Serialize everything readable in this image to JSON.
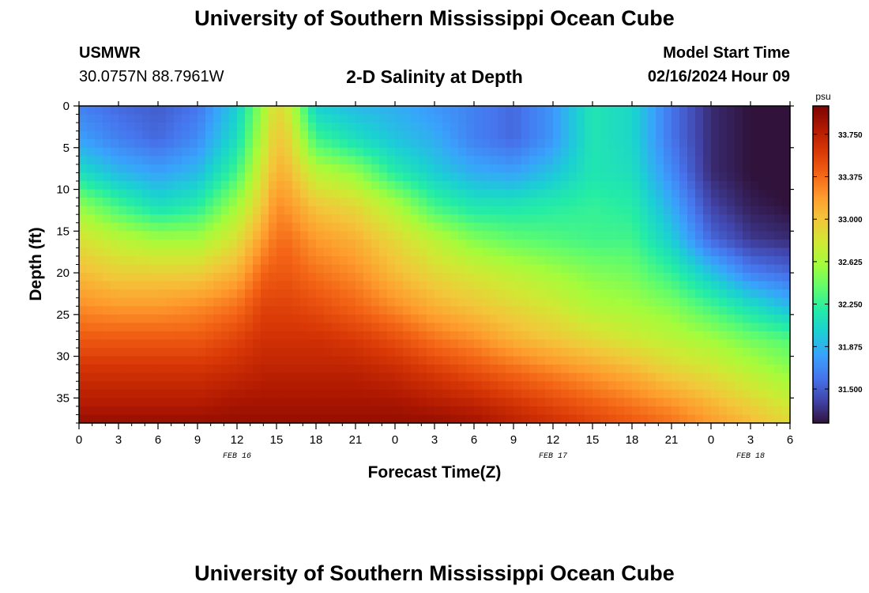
{
  "header": {
    "title": "University of Southern Mississippi Ocean Cube",
    "station": "USMWR",
    "coords": "30.0757N  88.7961W",
    "plot_title": "2-D Salinity at Depth",
    "model_label": "Model Start Time",
    "model_time": "02/16/2024 Hour 09"
  },
  "footer": {
    "title": "University of Southern Mississippi Ocean Cube"
  },
  "colors": {
    "colormap": [
      "#30123b",
      "#4145ab",
      "#4675ed",
      "#39a2fc",
      "#1bcfd4",
      "#24eca6",
      "#61fc6c",
      "#a4fc3b",
      "#d1e834",
      "#f3c63a",
      "#fe9b2d",
      "#f36315",
      "#d93806",
      "#b11901",
      "#7a0402"
    ]
  },
  "chart_data": {
    "type": "heatmap",
    "title": "2-D Salinity at Depth",
    "xlabel": "Forecast Time(Z)",
    "ylabel": "Depth (ft)",
    "x_tick_labels": [
      "0",
      "3",
      "6",
      "9",
      "12",
      "15",
      "18",
      "21",
      "0",
      "3",
      "6",
      "9",
      "12",
      "15",
      "18",
      "21",
      "0",
      "3",
      "6"
    ],
    "date_labels": [
      {
        "label": "FEB 16",
        "tick_index": 4
      },
      {
        "label": "FEB 17",
        "tick_index": 12
      },
      {
        "label": "FEB 18",
        "tick_index": 17
      }
    ],
    "y_ticks": [
      0,
      5,
      10,
      15,
      20,
      25,
      30,
      35
    ],
    "ylim": [
      0,
      38
    ],
    "xlim_hours": [
      0,
      54
    ],
    "colorbar": {
      "unit": "psu",
      "range": [
        31.2,
        34.0
      ],
      "ticks": [
        "33.750",
        "33.375",
        "33.000",
        "32.625",
        "32.250",
        "31.875",
        "31.500"
      ],
      "tick_values": [
        33.75,
        33.375,
        33.0,
        32.625,
        32.25,
        31.875,
        31.5
      ]
    },
    "depths_ft": [
      0,
      4,
      8,
      12,
      16,
      20,
      24,
      28,
      32,
      36,
      38
    ],
    "times_hours": [
      0,
      3,
      6,
      9,
      12,
      14,
      15,
      16,
      18,
      21,
      24,
      27,
      30,
      33,
      36,
      39,
      42,
      45,
      48,
      51,
      54
    ],
    "salinity_psu": [
      [
        31.65,
        31.55,
        31.5,
        31.6,
        32.0,
        32.6,
        32.9,
        32.75,
        32.0,
        31.9,
        31.85,
        31.75,
        31.65,
        31.55,
        31.75,
        32.15,
        32.05,
        31.6,
        31.3,
        31.2,
        31.15
      ],
      [
        31.8,
        31.65,
        31.55,
        31.7,
        32.1,
        32.7,
        33.0,
        32.9,
        32.3,
        32.1,
        31.95,
        31.85,
        31.65,
        31.55,
        31.75,
        32.15,
        32.05,
        31.6,
        31.3,
        31.2,
        31.15
      ],
      [
        32.1,
        31.9,
        31.8,
        31.9,
        32.3,
        32.85,
        33.1,
        33.05,
        32.7,
        32.55,
        32.2,
        32.0,
        31.85,
        31.8,
        31.95,
        32.15,
        32.1,
        31.7,
        31.3,
        31.2,
        31.15
      ],
      [
        32.55,
        32.3,
        32.1,
        32.2,
        32.6,
        33.0,
        33.25,
        33.2,
        33.0,
        32.9,
        32.65,
        32.3,
        32.15,
        32.15,
        32.2,
        32.25,
        32.2,
        31.85,
        31.4,
        31.25,
        31.2
      ],
      [
        32.85,
        32.7,
        32.6,
        32.6,
        32.85,
        33.2,
        33.35,
        33.35,
        33.2,
        33.1,
        32.9,
        32.7,
        32.5,
        32.4,
        32.35,
        32.3,
        32.3,
        32.0,
        31.55,
        31.35,
        31.3
      ],
      [
        33.05,
        32.95,
        32.95,
        32.95,
        33.1,
        33.4,
        33.45,
        33.45,
        33.35,
        33.25,
        33.05,
        32.9,
        32.8,
        32.7,
        32.6,
        32.5,
        32.45,
        32.25,
        31.95,
        31.65,
        31.55
      ],
      [
        33.25,
        33.2,
        33.2,
        33.25,
        33.35,
        33.55,
        33.55,
        33.55,
        33.5,
        33.4,
        33.25,
        33.1,
        33.0,
        32.9,
        32.8,
        32.65,
        32.6,
        32.5,
        32.3,
        32.1,
        31.9
      ],
      [
        33.45,
        33.45,
        33.45,
        33.45,
        33.55,
        33.65,
        33.65,
        33.65,
        33.65,
        33.6,
        33.5,
        33.35,
        33.25,
        33.1,
        33.0,
        32.9,
        32.8,
        32.7,
        32.6,
        32.45,
        32.35
      ],
      [
        33.65,
        33.65,
        33.65,
        33.65,
        33.7,
        33.75,
        33.75,
        33.75,
        33.75,
        33.75,
        33.7,
        33.6,
        33.5,
        33.4,
        33.3,
        33.2,
        33.1,
        32.95,
        32.85,
        32.7,
        32.55
      ],
      [
        33.8,
        33.8,
        33.8,
        33.8,
        33.85,
        33.85,
        33.85,
        33.85,
        33.85,
        33.85,
        33.85,
        33.8,
        33.75,
        33.65,
        33.55,
        33.45,
        33.35,
        33.25,
        33.1,
        32.95,
        32.8
      ],
      [
        33.9,
        33.9,
        33.9,
        33.9,
        33.9,
        33.9,
        33.9,
        33.9,
        33.9,
        33.9,
        33.9,
        33.9,
        33.85,
        33.75,
        33.65,
        33.55,
        33.45,
        33.35,
        33.2,
        33.05,
        32.9
      ]
    ]
  }
}
